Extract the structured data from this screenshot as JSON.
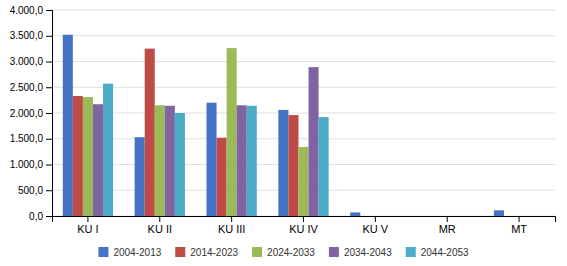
{
  "chart_data": {
    "type": "bar",
    "categories": [
      "KU I",
      "KU II",
      "KU III",
      "KU IV",
      "KU V",
      "MR",
      "MT"
    ],
    "series": [
      {
        "name": "2004-2013",
        "color": "#4472C4",
        "values": [
          3520,
          1530,
          2200,
          2060,
          70,
          0,
          110
        ]
      },
      {
        "name": "2014-2023",
        "color": "#BE4B48",
        "values": [
          2330,
          3250,
          1520,
          1960,
          0,
          0,
          0
        ]
      },
      {
        "name": "2024-2033",
        "color": "#9BBB59",
        "values": [
          2310,
          2150,
          3260,
          1340,
          0,
          0,
          0
        ]
      },
      {
        "name": "2034-2043",
        "color": "#8064A2",
        "values": [
          2170,
          2140,
          2150,
          2890,
          0,
          0,
          0
        ]
      },
      {
        "name": "2044-2053",
        "color": "#4BACC6",
        "values": [
          2570,
          2000,
          2140,
          1920,
          0,
          0,
          0
        ]
      }
    ],
    "ylim": [
      0,
      4000
    ],
    "yticks": [
      {
        "value": 0,
        "label": "0,0"
      },
      {
        "value": 500,
        "label": "500,0"
      },
      {
        "value": 1000,
        "label": "1.000,0"
      },
      {
        "value": 1500,
        "label": "1.500,0"
      },
      {
        "value": 2000,
        "label": "2.000,0"
      },
      {
        "value": 2500,
        "label": "2.500,0"
      },
      {
        "value": 3000,
        "label": "3.000,0"
      },
      {
        "value": 3500,
        "label": "3.500,0"
      },
      {
        "value": 4000,
        "label": "4.000,0"
      }
    ],
    "grid": true,
    "legend": "bottom"
  }
}
